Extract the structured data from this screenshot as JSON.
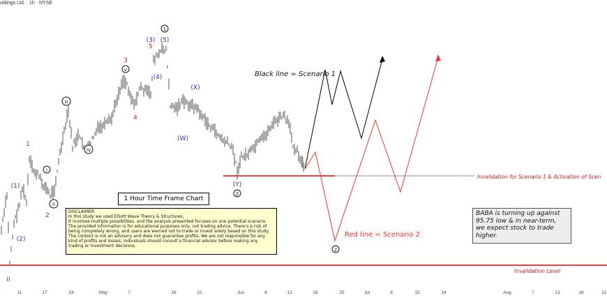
{
  "header": {
    "title": "oldings Ltd. · 1h · NYSE"
  },
  "chart_data": {
    "type": "candlestick",
    "timeframe": "1h",
    "x_ticks": [
      "11",
      "17",
      "24",
      "May",
      "7",
      "16",
      "22",
      "Jun",
      "6",
      "12",
      "18",
      "25",
      "Jul",
      "8",
      "15",
      "24",
      "Aug",
      "7",
      "13",
      "18",
      "22"
    ],
    "price_series": [
      50,
      55,
      62,
      85,
      60,
      70,
      95,
      110,
      108,
      140,
      150,
      145,
      160,
      170,
      180,
      220,
      215,
      190,
      200,
      185,
      170,
      160,
      150,
      140,
      130,
      125,
      115,
      112,
      120,
      130,
      150,
      160,
      170,
      175,
      178,
      180,
      175,
      160,
      155,
      150,
      152,
      154,
      155
    ],
    "wave_labels": [
      {
        "text": "(1)",
        "color": "#2a35b8"
      },
      {
        "text": "(2)",
        "color": "#2a35b8"
      },
      {
        "text": "1",
        "color": "#cc2222"
      },
      {
        "text": "2",
        "color": "#cc2222"
      },
      {
        "text": "i",
        "color": "#111"
      },
      {
        "text": "ii",
        "color": "#111"
      },
      {
        "text": "iii",
        "color": "#111"
      },
      {
        "text": "iv",
        "color": "#111"
      },
      {
        "text": "v",
        "color": "#111"
      },
      {
        "text": "3",
        "color": "#cc2222"
      },
      {
        "text": "4",
        "color": "#cc2222"
      },
      {
        "text": "5",
        "color": "#cc2222"
      },
      {
        "text": "(3)",
        "color": "#2a35b8"
      },
      {
        "text": "(4)",
        "color": "#2a35b8"
      },
      {
        "text": "(5)",
        "color": "#2a35b8"
      },
      {
        "text": "1",
        "color": "#111"
      },
      {
        "text": "(W)",
        "color": "#2a35b8"
      },
      {
        "text": "(X)",
        "color": "#2a35b8"
      },
      {
        "text": "(Y)",
        "color": "#2a35b8"
      },
      {
        "text": "2",
        "color": "#111"
      },
      {
        "text": "2",
        "color": "#111"
      },
      {
        "text": "II",
        "color": "#cc2222"
      }
    ],
    "scenario_1_label": "Black line = Scenario 1",
    "scenario_2_label": "Red line = Scenario 2",
    "invalidation_1_label": "Invalidation for Scenario 1 & Activation of Scen",
    "invalidation_level_label": "Invalidation Level",
    "colors": {
      "candle": "#555555",
      "scenario1": "#000000",
      "scenario2": "#ff3333",
      "invalidation": "#ff0000",
      "wave_blue": "#2a35b8",
      "wave_red": "#cc2222"
    }
  },
  "timeframe_box": "1 Hour Time Frame Chart",
  "disclaimer": {
    "title": "DISCLAIMER:",
    "body": "In this study we used Elliott Wave Theory & Structures,\nIt involves multiple possibilities, and the analysis presented focuses on one potential scenario. The provided information is for educational purposes only, not trading advice. There's a risk of being completely wrong, and users are warned not to trade or invest solely based on this study. The content is not an advisory and does not guarantee profits. We are not responsible for any kind of profits and losses; individuals should consult a financial advisor before making any trading or investment decisions."
  },
  "note": "BABA is turning up against\n95.75 low & in near-term,\nwe expect stock to trade\nhigher."
}
